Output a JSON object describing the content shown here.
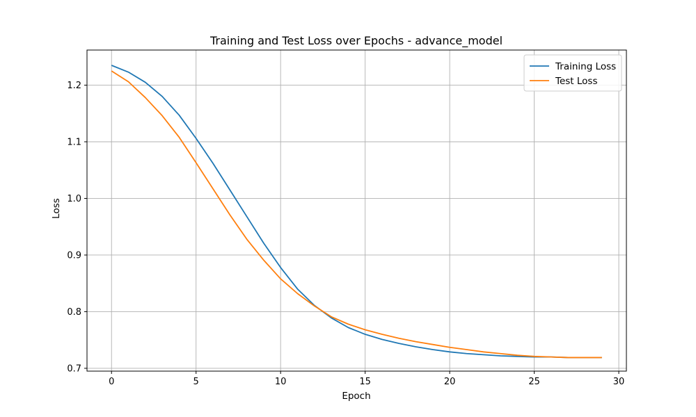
{
  "chart_data": {
    "type": "line",
    "title": "Training and Test Loss over Epochs - advance_model",
    "xlabel": "Epoch",
    "ylabel": "Loss",
    "xlim": [
      -1.45,
      30.45
    ],
    "ylim": [
      0.695,
      1.262
    ],
    "xticks": [
      0,
      5,
      10,
      15,
      20,
      25,
      30
    ],
    "xtick_labels": [
      "0",
      "5",
      "10",
      "15",
      "20",
      "25",
      "30"
    ],
    "yticks": [
      0.7,
      0.8,
      0.9,
      1.0,
      1.1,
      1.2
    ],
    "ytick_labels": [
      "0.7",
      "0.8",
      "0.9",
      "1.0",
      "1.1",
      "1.2"
    ],
    "grid": true,
    "legend_position": "upper right",
    "x": [
      0,
      1,
      2,
      3,
      4,
      5,
      6,
      7,
      8,
      9,
      10,
      11,
      12,
      13,
      14,
      15,
      16,
      17,
      18,
      19,
      20,
      21,
      22,
      23,
      24,
      25,
      26,
      27,
      28,
      29
    ],
    "series": [
      {
        "name": "Training Loss",
        "color": "#1f77b4",
        "values": [
          1.235,
          1.223,
          1.205,
          1.18,
          1.147,
          1.106,
          1.062,
          1.015,
          0.968,
          0.921,
          0.878,
          0.84,
          0.811,
          0.789,
          0.772,
          0.76,
          0.751,
          0.744,
          0.738,
          0.733,
          0.729,
          0.726,
          0.724,
          0.722,
          0.721,
          0.72,
          0.72,
          0.719,
          0.719,
          0.719
        ]
      },
      {
        "name": "Test Loss",
        "color": "#ff7f0e",
        "values": [
          1.225,
          1.206,
          1.178,
          1.146,
          1.108,
          1.063,
          1.017,
          0.971,
          0.928,
          0.891,
          0.858,
          0.832,
          0.81,
          0.791,
          0.778,
          0.768,
          0.76,
          0.753,
          0.747,
          0.742,
          0.737,
          0.733,
          0.729,
          0.726,
          0.723,
          0.721,
          0.72,
          0.719,
          0.719,
          0.719
        ]
      }
    ]
  }
}
